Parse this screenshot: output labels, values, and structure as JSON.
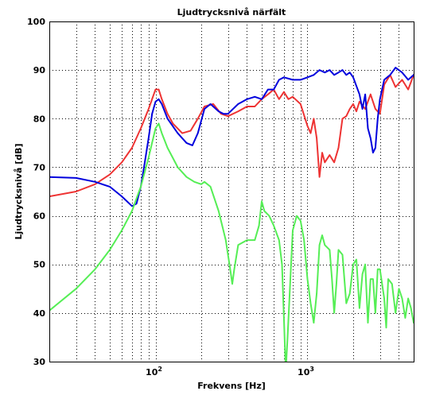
{
  "chart_data": {
    "type": "line",
    "title": "Ljudtrycksnivå närfält",
    "xlabel": "Frekvens [Hz]",
    "ylabel": "Ljudtrycksnivå [dB]",
    "xscale": "log",
    "xlim": [
      20,
      5000
    ],
    "ylim": [
      30,
      100
    ],
    "yticks": [
      30,
      40,
      50,
      60,
      70,
      80,
      90,
      100
    ],
    "xticks": [
      {
        "value": 100,
        "base": "10",
        "exp": "2"
      },
      {
        "value": 1000,
        "base": "10",
        "exp": "3"
      }
    ],
    "grid": true,
    "legend": "none",
    "series": [
      {
        "color": "#ee3333",
        "points": [
          [
            20,
            64
          ],
          [
            30,
            65
          ],
          [
            40,
            66.5
          ],
          [
            50,
            68.5
          ],
          [
            60,
            71
          ],
          [
            70,
            74
          ],
          [
            80,
            78
          ],
          [
            90,
            82
          ],
          [
            100,
            86
          ],
          [
            105,
            86
          ],
          [
            110,
            84
          ],
          [
            120,
            81
          ],
          [
            130,
            79
          ],
          [
            150,
            77
          ],
          [
            170,
            77.5
          ],
          [
            190,
            80
          ],
          [
            210,
            82.5
          ],
          [
            240,
            83
          ],
          [
            270,
            81
          ],
          [
            300,
            80.5
          ],
          [
            350,
            81.5
          ],
          [
            400,
            82.5
          ],
          [
            450,
            82.5
          ],
          [
            500,
            84
          ],
          [
            550,
            85
          ],
          [
            600,
            86
          ],
          [
            650,
            84
          ],
          [
            700,
            85.5
          ],
          [
            750,
            84
          ],
          [
            800,
            84.5
          ],
          [
            900,
            83
          ],
          [
            1000,
            78.5
          ],
          [
            1050,
            77
          ],
          [
            1100,
            80
          ],
          [
            1150,
            76
          ],
          [
            1200,
            68
          ],
          [
            1250,
            73
          ],
          [
            1300,
            71
          ],
          [
            1400,
            72.5
          ],
          [
            1500,
            71
          ],
          [
            1600,
            74
          ],
          [
            1700,
            80
          ],
          [
            1800,
            80.5
          ],
          [
            1900,
            82
          ],
          [
            2000,
            83
          ],
          [
            2100,
            81.5
          ],
          [
            2200,
            83.5
          ],
          [
            2400,
            82
          ],
          [
            2600,
            85
          ],
          [
            2800,
            82
          ],
          [
            3000,
            81
          ],
          [
            3200,
            87
          ],
          [
            3500,
            89
          ],
          [
            3800,
            86.5
          ],
          [
            4200,
            88
          ],
          [
            4600,
            86
          ],
          [
            5000,
            89
          ]
        ]
      },
      {
        "color": "#0000dd",
        "points": [
          [
            20,
            68
          ],
          [
            30,
            67.8
          ],
          [
            40,
            67
          ],
          [
            50,
            66
          ],
          [
            60,
            64
          ],
          [
            70,
            62
          ],
          [
            75,
            62.5
          ],
          [
            80,
            66
          ],
          [
            85,
            71
          ],
          [
            90,
            76
          ],
          [
            95,
            81
          ],
          [
            100,
            83.5
          ],
          [
            105,
            84
          ],
          [
            110,
            83
          ],
          [
            120,
            80
          ],
          [
            140,
            77
          ],
          [
            160,
            75
          ],
          [
            175,
            74.5
          ],
          [
            190,
            77
          ],
          [
            210,
            82
          ],
          [
            230,
            83
          ],
          [
            260,
            81.5
          ],
          [
            280,
            81
          ],
          [
            300,
            81
          ],
          [
            350,
            83
          ],
          [
            400,
            84
          ],
          [
            450,
            84.5
          ],
          [
            500,
            84
          ],
          [
            550,
            86
          ],
          [
            600,
            86
          ],
          [
            650,
            88
          ],
          [
            700,
            88.5
          ],
          [
            800,
            88
          ],
          [
            900,
            88
          ],
          [
            1000,
            88.5
          ],
          [
            1100,
            89
          ],
          [
            1200,
            90
          ],
          [
            1300,
            89.5
          ],
          [
            1400,
            90
          ],
          [
            1500,
            89
          ],
          [
            1600,
            89.5
          ],
          [
            1700,
            90
          ],
          [
            1800,
            89
          ],
          [
            1900,
            89.5
          ],
          [
            2000,
            88.5
          ],
          [
            2200,
            85
          ],
          [
            2300,
            82
          ],
          [
            2400,
            85
          ],
          [
            2500,
            78
          ],
          [
            2600,
            76
          ],
          [
            2700,
            73
          ],
          [
            2800,
            74
          ],
          [
            2900,
            80
          ],
          [
            3000,
            84
          ],
          [
            3200,
            88
          ],
          [
            3500,
            89
          ],
          [
            3800,
            90.5
          ],
          [
            4200,
            89.5
          ],
          [
            4600,
            88
          ],
          [
            5000,
            89
          ]
        ]
      },
      {
        "color": "#55ee55",
        "points": [
          [
            20,
            40.5
          ],
          [
            30,
            45
          ],
          [
            40,
            49
          ],
          [
            50,
            53
          ],
          [
            60,
            57
          ],
          [
            70,
            61
          ],
          [
            80,
            66
          ],
          [
            90,
            72
          ],
          [
            100,
            78
          ],
          [
            105,
            79
          ],
          [
            110,
            77
          ],
          [
            120,
            74
          ],
          [
            140,
            70
          ],
          [
            160,
            68
          ],
          [
            180,
            67
          ],
          [
            200,
            66.5
          ],
          [
            210,
            67
          ],
          [
            230,
            66
          ],
          [
            260,
            61
          ],
          [
            290,
            55
          ],
          [
            310,
            49
          ],
          [
            320,
            46
          ],
          [
            330,
            49
          ],
          [
            350,
            54
          ],
          [
            400,
            55
          ],
          [
            450,
            55
          ],
          [
            480,
            58
          ],
          [
            500,
            63
          ],
          [
            520,
            61
          ],
          [
            560,
            60
          ],
          [
            600,
            58
          ],
          [
            650,
            55
          ],
          [
            680,
            50
          ],
          [
            700,
            39
          ],
          [
            720,
            28
          ],
          [
            740,
            35
          ],
          [
            780,
            50
          ],
          [
            800,
            57
          ],
          [
            850,
            60
          ],
          [
            900,
            59
          ],
          [
            950,
            55
          ],
          [
            1000,
            47
          ],
          [
            1050,
            42
          ],
          [
            1100,
            38
          ],
          [
            1150,
            44
          ],
          [
            1200,
            54
          ],
          [
            1250,
            56
          ],
          [
            1300,
            54
          ],
          [
            1400,
            53
          ],
          [
            1450,
            47
          ],
          [
            1500,
            40
          ],
          [
            1550,
            46
          ],
          [
            1600,
            53
          ],
          [
            1700,
            52
          ],
          [
            1800,
            42
          ],
          [
            1900,
            44
          ],
          [
            2000,
            50
          ],
          [
            2100,
            51
          ],
          [
            2200,
            41
          ],
          [
            2300,
            48
          ],
          [
            2400,
            50
          ],
          [
            2500,
            38
          ],
          [
            2600,
            47
          ],
          [
            2700,
            47
          ],
          [
            2800,
            40
          ],
          [
            2900,
            49
          ],
          [
            3000,
            49
          ],
          [
            3200,
            43
          ],
          [
            3300,
            37
          ],
          [
            3400,
            47
          ],
          [
            3600,
            46
          ],
          [
            3800,
            40
          ],
          [
            4000,
            45
          ],
          [
            4200,
            43
          ],
          [
            4400,
            39
          ],
          [
            4600,
            43
          ],
          [
            4800,
            41
          ],
          [
            5000,
            38
          ]
        ]
      }
    ]
  }
}
